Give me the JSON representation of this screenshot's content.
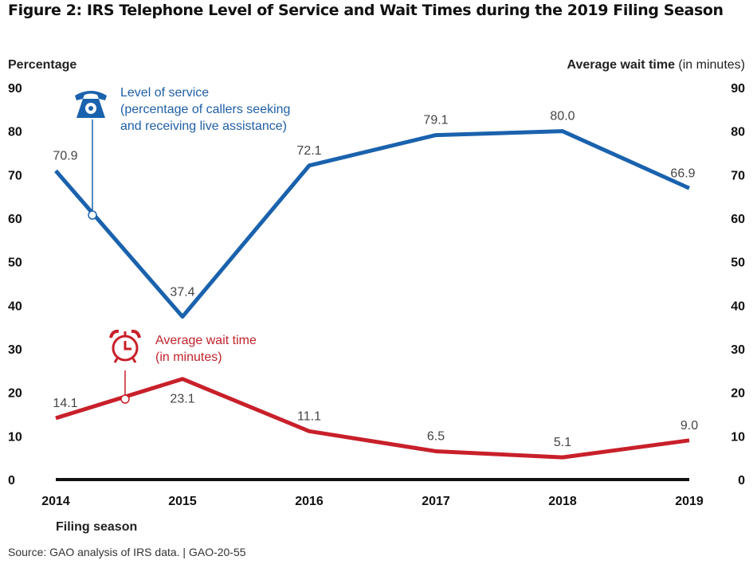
{
  "chart_data": {
    "type": "line",
    "title": "Figure 2: IRS Telephone Level of Service and Wait Times during the 2019 Filing Season",
    "ylabel_left": "Percentage",
    "ylabel_right_bold": "Average wait time",
    "ylabel_right_normal": "(in minutes)",
    "xlabel": "Filing season",
    "ylim": [
      0,
      90
    ],
    "yticks": [
      "0",
      "10",
      "20",
      "30",
      "40",
      "50",
      "60",
      "70",
      "80",
      "90"
    ],
    "categories": [
      "2014",
      "2015",
      "2016",
      "2017",
      "2018",
      "2019"
    ],
    "series": [
      {
        "name": "Level of service",
        "annotation": [
          "Level of service",
          "(percentage of callers seeking",
          "and receiving live assistance)"
        ],
        "icon": "telephone-icon",
        "color": "#1a62ad",
        "values": [
          70.9,
          37.4,
          72.1,
          79.1,
          80.0,
          66.9
        ],
        "labels": [
          "70.9",
          "37.4",
          "72.1",
          "79.1",
          "80.0",
          "66.9"
        ]
      },
      {
        "name": "Average wait time",
        "annotation": [
          "Average wait time",
          "(in minutes)"
        ],
        "icon": "alarm-clock-icon",
        "color": "#c8202a",
        "values": [
          14.1,
          23.1,
          11.1,
          6.5,
          5.1,
          9.0
        ],
        "labels": [
          "14.1",
          "23.1",
          "11.1",
          "6.5",
          "5.1",
          "9.0"
        ]
      }
    ],
    "grid": false,
    "legend": "inline-annotations"
  },
  "source": "Source: GAO analysis of IRS data.  |  GAO-20-55"
}
